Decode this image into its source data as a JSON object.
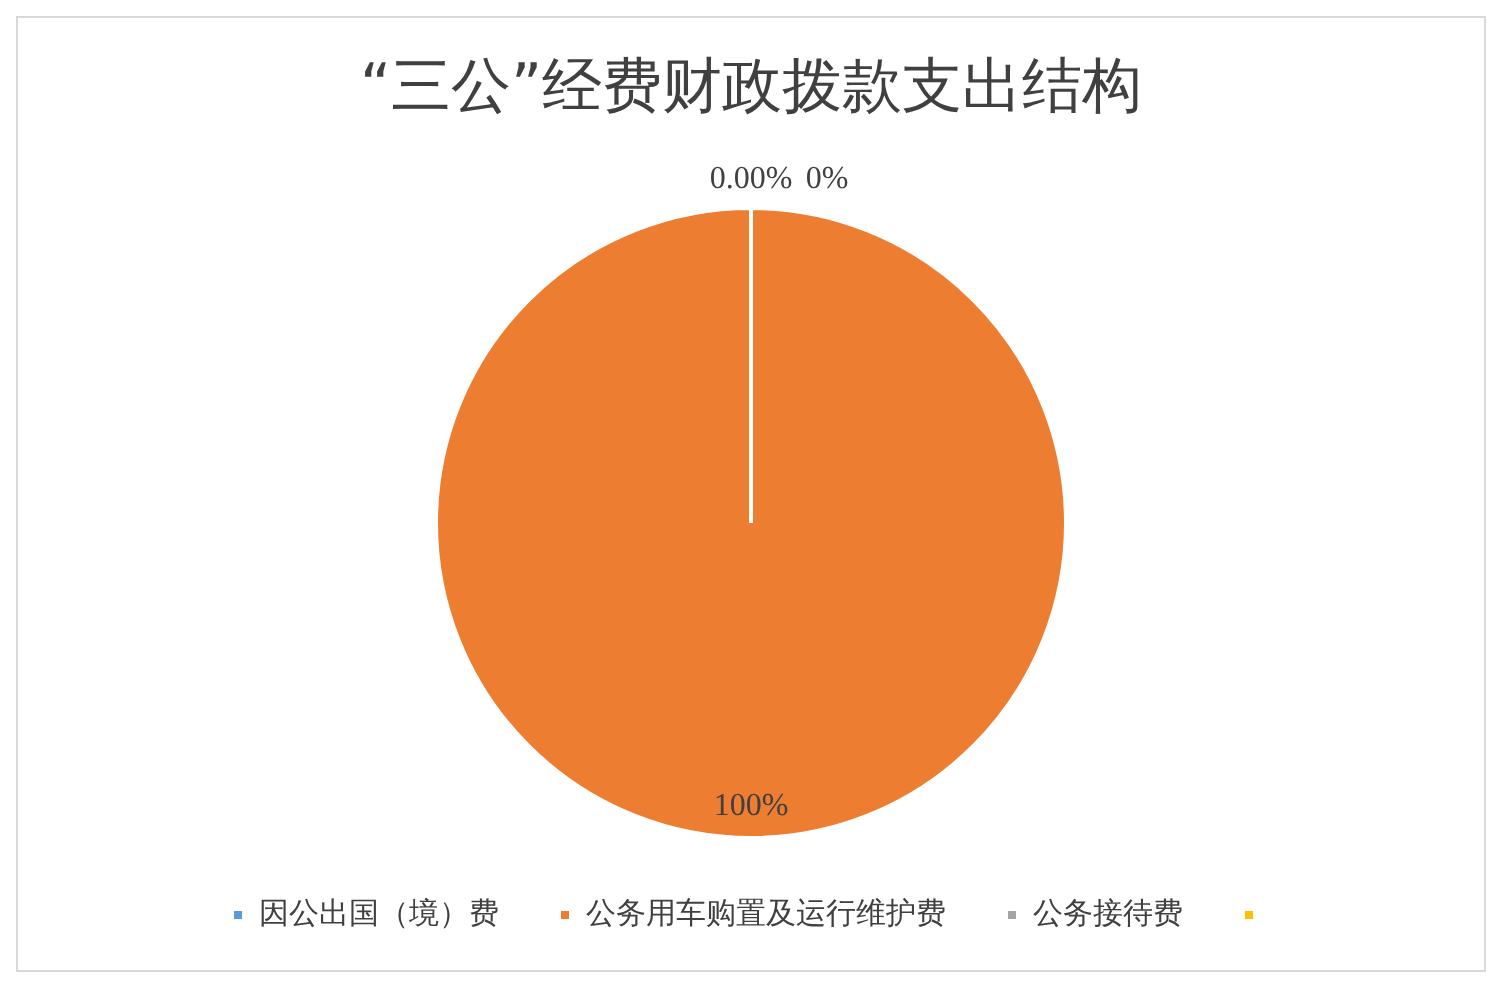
{
  "chart_data": {
    "type": "pie",
    "title": "“三公”经费财政拨款支出结构",
    "categories": [
      "因公出国（境）费",
      "公务用车购置及运行维护费",
      "公务接待费",
      null
    ],
    "values": [
      0,
      100,
      0,
      0
    ],
    "colors": [
      "#5b9bd5",
      "#ed7d31",
      "#a5a5a5",
      "#ffc000"
    ],
    "value_labels": [
      "0.00%",
      "100%",
      "0%",
      null
    ],
    "legend": "bottom"
  }
}
